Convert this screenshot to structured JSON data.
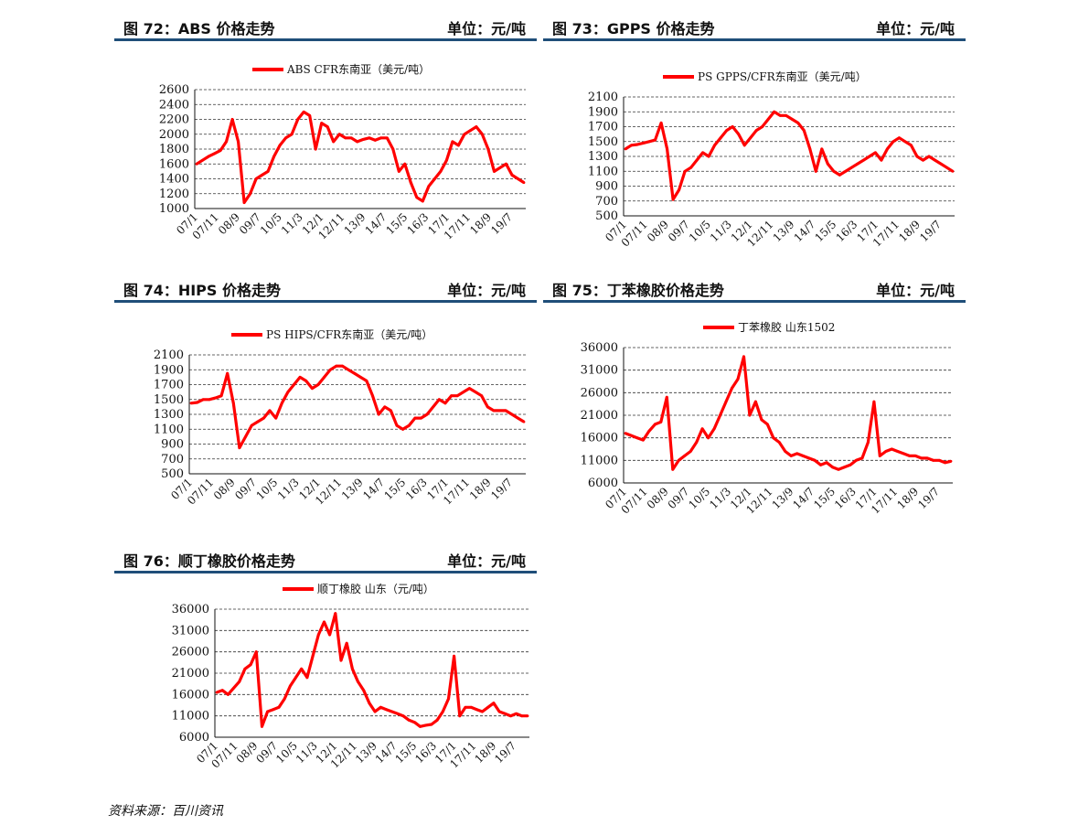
{
  "source": "资料来源：百川资讯",
  "chart_data": [
    {
      "type": "line",
      "fig_title": "图 72：ABS 价格走势",
      "unit": "单位：元/吨",
      "series": [
        {
          "name": "ABS CFR东南亚（美元/吨）",
          "color": "#ff0000",
          "values": [
            1600,
            1650,
            1700,
            1740,
            1780,
            1900,
            2200,
            1900,
            1080,
            1200,
            1400,
            1450,
            1500,
            1700,
            1850,
            1950,
            2000,
            2200,
            2300,
            2250,
            1800,
            2150,
            2100,
            1900,
            2000,
            1950,
            1950,
            1900,
            1930,
            1950,
            1920,
            1950,
            1950,
            1800,
            1500,
            1600,
            1350,
            1150,
            1100,
            1300,
            1400,
            1500,
            1650,
            1900,
            1850,
            2000,
            2050,
            2100,
            2000,
            1800,
            1500,
            1550,
            1600,
            1450,
            1400,
            1350
          ]
        }
      ],
      "x_labels": [
        "07/1",
        "07/11",
        "08/9",
        "09/7",
        "10/5",
        "11/3",
        "12/1",
        "12/11",
        "13/9",
        "14/7",
        "15/5",
        "16/3",
        "17/1",
        "17/11",
        "18/9",
        "19/7"
      ],
      "y_ticks": [
        1000,
        1200,
        1400,
        1600,
        1800,
        2000,
        2200,
        2400,
        2600
      ],
      "ylim": [
        1000,
        2600
      ]
    },
    {
      "type": "line",
      "fig_title": "图 73：GPPS 价格走势",
      "unit": "单位：元/吨",
      "series": [
        {
          "name": "PS GPPS/CFR东南亚（美元/吨）",
          "color": "#ff0000",
          "values": [
            1400,
            1450,
            1460,
            1480,
            1500,
            1520,
            1750,
            1400,
            720,
            850,
            1100,
            1150,
            1250,
            1350,
            1300,
            1450,
            1550,
            1650,
            1700,
            1600,
            1450,
            1550,
            1650,
            1700,
            1800,
            1900,
            1850,
            1850,
            1800,
            1750,
            1650,
            1400,
            1100,
            1400,
            1200,
            1100,
            1050,
            1100,
            1150,
            1200,
            1250,
            1300,
            1350,
            1250,
            1400,
            1500,
            1550,
            1500,
            1450,
            1300,
            1250,
            1300,
            1250,
            1200,
            1150,
            1100
          ]
        }
      ],
      "x_labels": [
        "07/1",
        "07/11",
        "08/9",
        "09/7",
        "10/5",
        "11/3",
        "12/1",
        "12/11",
        "13/9",
        "14/7",
        "15/5",
        "16/3",
        "17/1",
        "17/11",
        "18/9",
        "19/7"
      ],
      "y_ticks": [
        500,
        700,
        900,
        1100,
        1300,
        1500,
        1700,
        1900,
        2100
      ],
      "ylim": [
        500,
        2100
      ]
    },
    {
      "type": "line",
      "fig_title": "图 74：HIPS 价格走势",
      "unit": "单位：元/吨",
      "series": [
        {
          "name": "PS HIPS/CFR东南亚（美元/吨）",
          "color": "#ff0000",
          "values": [
            1450,
            1460,
            1500,
            1500,
            1520,
            1550,
            1850,
            1450,
            850,
            1000,
            1150,
            1200,
            1250,
            1350,
            1250,
            1450,
            1600,
            1700,
            1800,
            1750,
            1650,
            1700,
            1800,
            1900,
            1950,
            1950,
            1900,
            1850,
            1800,
            1750,
            1550,
            1300,
            1400,
            1350,
            1150,
            1100,
            1150,
            1250,
            1250,
            1300,
            1400,
            1500,
            1450,
            1550,
            1550,
            1600,
            1650,
            1600,
            1550,
            1400,
            1350,
            1350,
            1350,
            1300,
            1250,
            1200
          ]
        }
      ],
      "x_labels": [
        "07/1",
        "07/11",
        "08/9",
        "09/7",
        "10/5",
        "11/3",
        "12/1",
        "12/11",
        "13/9",
        "14/7",
        "15/5",
        "16/3",
        "17/1",
        "17/11",
        "18/9",
        "19/7"
      ],
      "y_ticks": [
        500,
        700,
        900,
        1100,
        1300,
        1500,
        1700,
        1900,
        2100
      ],
      "ylim": [
        500,
        2100
      ]
    },
    {
      "type": "line",
      "fig_title": "图 75：丁苯橡胶价格走势",
      "unit": "单位：元/吨",
      "series": [
        {
          "name": "丁苯橡胶 山东1502",
          "color": "#ff0000",
          "values": [
            17000,
            16500,
            16000,
            15500,
            17500,
            19000,
            19500,
            25000,
            9000,
            11000,
            12000,
            13000,
            15000,
            18000,
            16000,
            18000,
            21000,
            24000,
            27000,
            29000,
            34000,
            21000,
            24000,
            20000,
            19000,
            16000,
            15000,
            13000,
            12000,
            12500,
            12000,
            11500,
            11000,
            10000,
            10500,
            9500,
            9000,
            9500,
            10000,
            11000,
            11500,
            15000,
            24000,
            12000,
            13000,
            13500,
            13000,
            12500,
            12000,
            12000,
            11500,
            11500,
            11000,
            11000,
            10500,
            10800
          ]
        }
      ],
      "x_labels": [
        "07/1",
        "07/11",
        "08/9",
        "09/7",
        "10/5",
        "11/3",
        "12/1",
        "12/11",
        "13/9",
        "14/7",
        "15/5",
        "16/3",
        "17/1",
        "17/11",
        "18/9",
        "19/7"
      ],
      "y_ticks": [
        6000,
        11000,
        16000,
        21000,
        26000,
        31000,
        36000
      ],
      "ylim": [
        6000,
        36000
      ]
    },
    {
      "type": "line",
      "fig_title": "图 76：顺丁橡胶价格走势",
      "unit": "单位：元/吨",
      "series": [
        {
          "name": "顺丁橡胶 山东（元/吨）",
          "color": "#ff0000",
          "values": [
            16500,
            17000,
            16000,
            17500,
            19000,
            22000,
            23000,
            26000,
            8500,
            12000,
            12500,
            13000,
            15000,
            18000,
            20000,
            22000,
            20000,
            25000,
            30000,
            33000,
            30000,
            35000,
            24000,
            28000,
            22000,
            19000,
            17000,
            14000,
            12000,
            13000,
            12500,
            12000,
            11500,
            11000,
            10000,
            9500,
            8500,
            8800,
            9000,
            10000,
            12000,
            15000,
            25000,
            11000,
            13000,
            13000,
            12500,
            12000,
            13000,
            14000,
            12000,
            11500,
            11000,
            11500,
            11000,
            11000
          ]
        }
      ],
      "x_labels": [
        "07/1",
        "07/11",
        "08/9",
        "09/7",
        "10/5",
        "11/3",
        "12/1",
        "12/11",
        "13/9",
        "14/7",
        "15/5",
        "16/3",
        "17/1",
        "17/11",
        "18/9",
        "19/7"
      ],
      "y_ticks": [
        6000,
        11000,
        16000,
        21000,
        26000,
        31000,
        36000
      ],
      "ylim": [
        6000,
        36000
      ]
    }
  ]
}
